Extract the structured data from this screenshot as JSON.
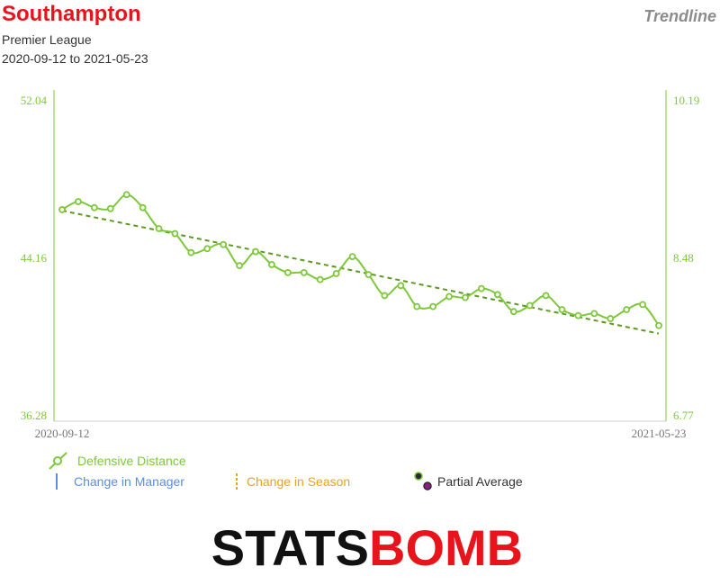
{
  "header": {
    "team": "Southampton",
    "league": "Premier League",
    "date_range": "2020-09-12 to 2021-05-23",
    "view": "Trendline"
  },
  "colors": {
    "team": "#e8141b",
    "series": "#7dc83a",
    "trend": "#5b9a1f",
    "manager": "#5b8de0",
    "season": "#e8a317",
    "partial_outer": "#8a1f8a",
    "partial_inner": "#2b2b2b",
    "brand_black": "#111111",
    "brand_red": "#e8141b"
  },
  "legend": {
    "series": "Defensive Distance",
    "manager": "Change in Manager",
    "season": "Change in Season",
    "partial": "Partial Average"
  },
  "brand": {
    "left": "STATS",
    "right": "BOMB"
  },
  "chart_data": {
    "type": "line",
    "x_tick_labels": [
      "2020-09-12",
      "2021-05-23"
    ],
    "y_left": {
      "ticks": [
        "52.04",
        "44.16",
        "36.28"
      ],
      "range": [
        36.28,
        52.04
      ]
    },
    "y_right": {
      "ticks": [
        "10.19",
        "8.48",
        "6.77"
      ],
      "range": [
        6.77,
        10.19
      ]
    },
    "series": [
      {
        "name": "Defensive Distance",
        "values": [
          46.55,
          46.95,
          46.65,
          46.6,
          47.3,
          46.65,
          45.6,
          45.35,
          44.4,
          44.6,
          44.8,
          43.75,
          44.45,
          43.8,
          43.4,
          43.4,
          43.05,
          43.35,
          44.2,
          43.3,
          42.25,
          42.75,
          41.7,
          41.7,
          42.2,
          42.15,
          42.6,
          42.3,
          41.45,
          41.75,
          42.25,
          41.55,
          41.25,
          41.35,
          41.1,
          41.55,
          41.8,
          40.75
        ]
      }
    ],
    "trendline": {
      "start": 46.5,
      "end": 40.35,
      "style": "dashed"
    },
    "grid": false,
    "legend_position": "bottom-left"
  }
}
